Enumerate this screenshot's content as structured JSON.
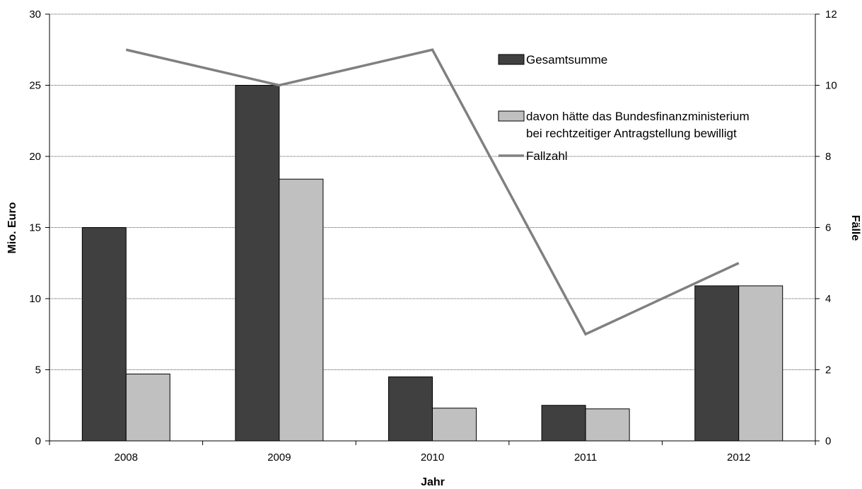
{
  "chart_data": {
    "type": "bar",
    "xlabel": "Jahr",
    "ylabel": "Mio. Euro",
    "y2label": "Fälle",
    "categories": [
      "2008",
      "2009",
      "2010",
      "2011",
      "2012"
    ],
    "ylim": [
      0,
      30
    ],
    "yticks": [
      "0",
      "5",
      "10",
      "15",
      "20",
      "25",
      "30"
    ],
    "y2lim": [
      0,
      12
    ],
    "y2ticks": [
      "0",
      "2",
      "4",
      "6",
      "8",
      "10",
      "12"
    ],
    "grid": true,
    "legend_position": "top-right",
    "series": [
      {
        "name": "Gesamtsumme",
        "type": "bar",
        "axis": "left",
        "color": "#404040",
        "values": [
          15.0,
          25.0,
          4.5,
          2.5,
          10.9
        ]
      },
      {
        "name": "davon hätte das Bundesfinanzministerium bei rechtzeitiger Antragstellung bewilligt",
        "legend_lines": [
          "davon hätte das Bundesfinanzministerium",
          "bei rechtzeitiger Antragstellung bewilligt"
        ],
        "type": "bar",
        "axis": "left",
        "color": "#c0c0c0",
        "values": [
          4.7,
          18.4,
          2.3,
          2.25,
          10.9
        ]
      },
      {
        "name": "Fallzahl",
        "type": "line",
        "axis": "right",
        "color": "#808080",
        "values": [
          11,
          10,
          11,
          3,
          5
        ]
      }
    ]
  }
}
